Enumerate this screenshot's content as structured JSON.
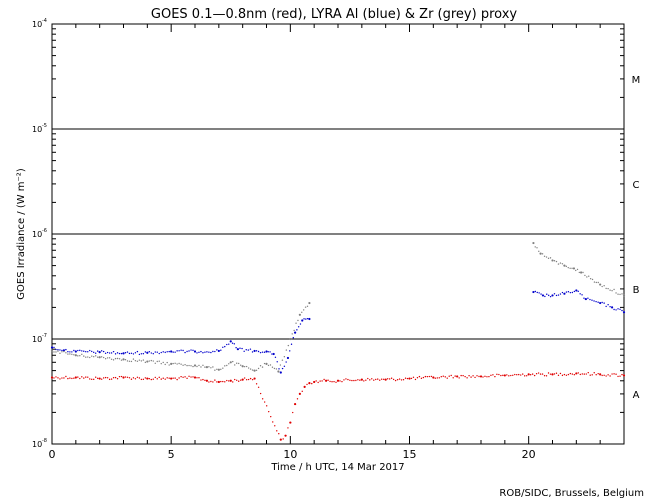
{
  "chart_data": {
    "type": "scatter",
    "title": "GOES 0.1—0.8nm (red), LYRA Al (blue) & Zr (grey) proxy",
    "xlabel": "Time / h UTC, 14 Mar 2017",
    "ylabel": "GOES Irradiance / (W m⁻²)",
    "xlim": [
      0,
      24
    ],
    "ylim": [
      1e-08,
      0.0001
    ],
    "yscale": "log",
    "x_ticks": [
      0,
      5,
      10,
      15,
      20
    ],
    "x_tick_labels": [
      "0",
      "5",
      "10",
      "15",
      "20"
    ],
    "y_ticks": [
      {
        "value": 1e-08,
        "base": "10",
        "exp": "-8"
      },
      {
        "value": 1e-07,
        "base": "10",
        "exp": "-7"
      },
      {
        "value": 1e-06,
        "base": "10",
        "exp": "-6"
      },
      {
        "value": 1e-05,
        "base": "10",
        "exp": "-5"
      },
      {
        "value": 0.0001,
        "base": "10",
        "exp": "-4"
      }
    ],
    "class_thresholds": [
      1e-07,
      1e-06,
      1e-05
    ],
    "class_labels": [
      {
        "label": "A",
        "value": 3e-08
      },
      {
        "label": "B",
        "value": 3e-07
      },
      {
        "label": "C",
        "value": 3e-06
      },
      {
        "label": "M",
        "value": 3e-05
      }
    ],
    "series": [
      {
        "name": "GOES 0.1-0.8nm",
        "color": "#e00000",
        "x": [
          0,
          1,
          2,
          3,
          4,
          5,
          6,
          6.5,
          7,
          7.5,
          8,
          8.5,
          9.6,
          9.8,
          10.0,
          10.2,
          10.4,
          10.6,
          10.8,
          11,
          11.5,
          12,
          13,
          14,
          15,
          16,
          17,
          18,
          19,
          20,
          21,
          22,
          23,
          24
        ],
        "values": [
          4.3e-08,
          4.3e-08,
          4.2e-08,
          4.3e-08,
          4.2e-08,
          4.2e-08,
          4.3e-08,
          4e-08,
          3.9e-08,
          4e-08,
          4.1e-08,
          4.2e-08,
          1.1e-08,
          1.2e-08,
          1.6e-08,
          2.4e-08,
          3e-08,
          3.5e-08,
          3.8e-08,
          3.9e-08,
          4e-08,
          4e-08,
          4.1e-08,
          4.1e-08,
          4.2e-08,
          4.3e-08,
          4.4e-08,
          4.4e-08,
          4.5e-08,
          4.6e-08,
          4.6e-08,
          4.7e-08,
          4.6e-08,
          4.5e-08
        ]
      },
      {
        "name": "LYRA Al proxy",
        "color": "#0000cc",
        "x": [
          0,
          0.5,
          1,
          2,
          3,
          4,
          5,
          6,
          7,
          7.5,
          7.8,
          8.5,
          9,
          9.3,
          9.6,
          9.9,
          10.2,
          10.5,
          10.8,
          20.2,
          20.6,
          21,
          21.5,
          22,
          22.4,
          23,
          23.5,
          24
        ],
        "values": [
          8.3e-08,
          7.8e-08,
          7.6e-08,
          7.5e-08,
          7.3e-08,
          7.4e-08,
          7.6e-08,
          7.6e-08,
          7.7e-08,
          9.5e-08,
          8e-08,
          7.7e-08,
          7.6e-08,
          7.2e-08,
          4.8e-08,
          6.6e-08,
          1.15e-07,
          1.5e-07,
          1.55e-07,
          2.8e-07,
          2.6e-07,
          2.6e-07,
          2.7e-07,
          2.9e-07,
          2.4e-07,
          2.2e-07,
          2e-07,
          1.8e-07
        ]
      },
      {
        "name": "LYRA Zr proxy",
        "color": "#808080",
        "x": [
          0,
          1,
          2,
          3,
          4,
          5,
          6,
          6.5,
          7,
          7.5,
          8,
          8.5,
          9,
          9.5,
          10,
          10.4,
          10.8,
          20.2,
          20.5,
          21,
          21.5,
          21.9,
          22.2,
          23,
          24
        ],
        "values": [
          7.8e-08,
          7e-08,
          6.7e-08,
          6.4e-08,
          6.1e-08,
          5.8e-08,
          5.6e-08,
          5.4e-08,
          5.1e-08,
          6e-08,
          5.5e-08,
          5e-08,
          5.8e-08,
          4.9e-08,
          1e-07,
          1.7e-07,
          2.2e-07,
          8.2e-07,
          6.5e-07,
          5.6e-07,
          5e-07,
          4.7e-07,
          4.3e-07,
          3.3e-07,
          2.6e-07
        ]
      }
    ]
  },
  "footer": {
    "credit": "ROB/SIDC, Brussels, Belgium"
  }
}
